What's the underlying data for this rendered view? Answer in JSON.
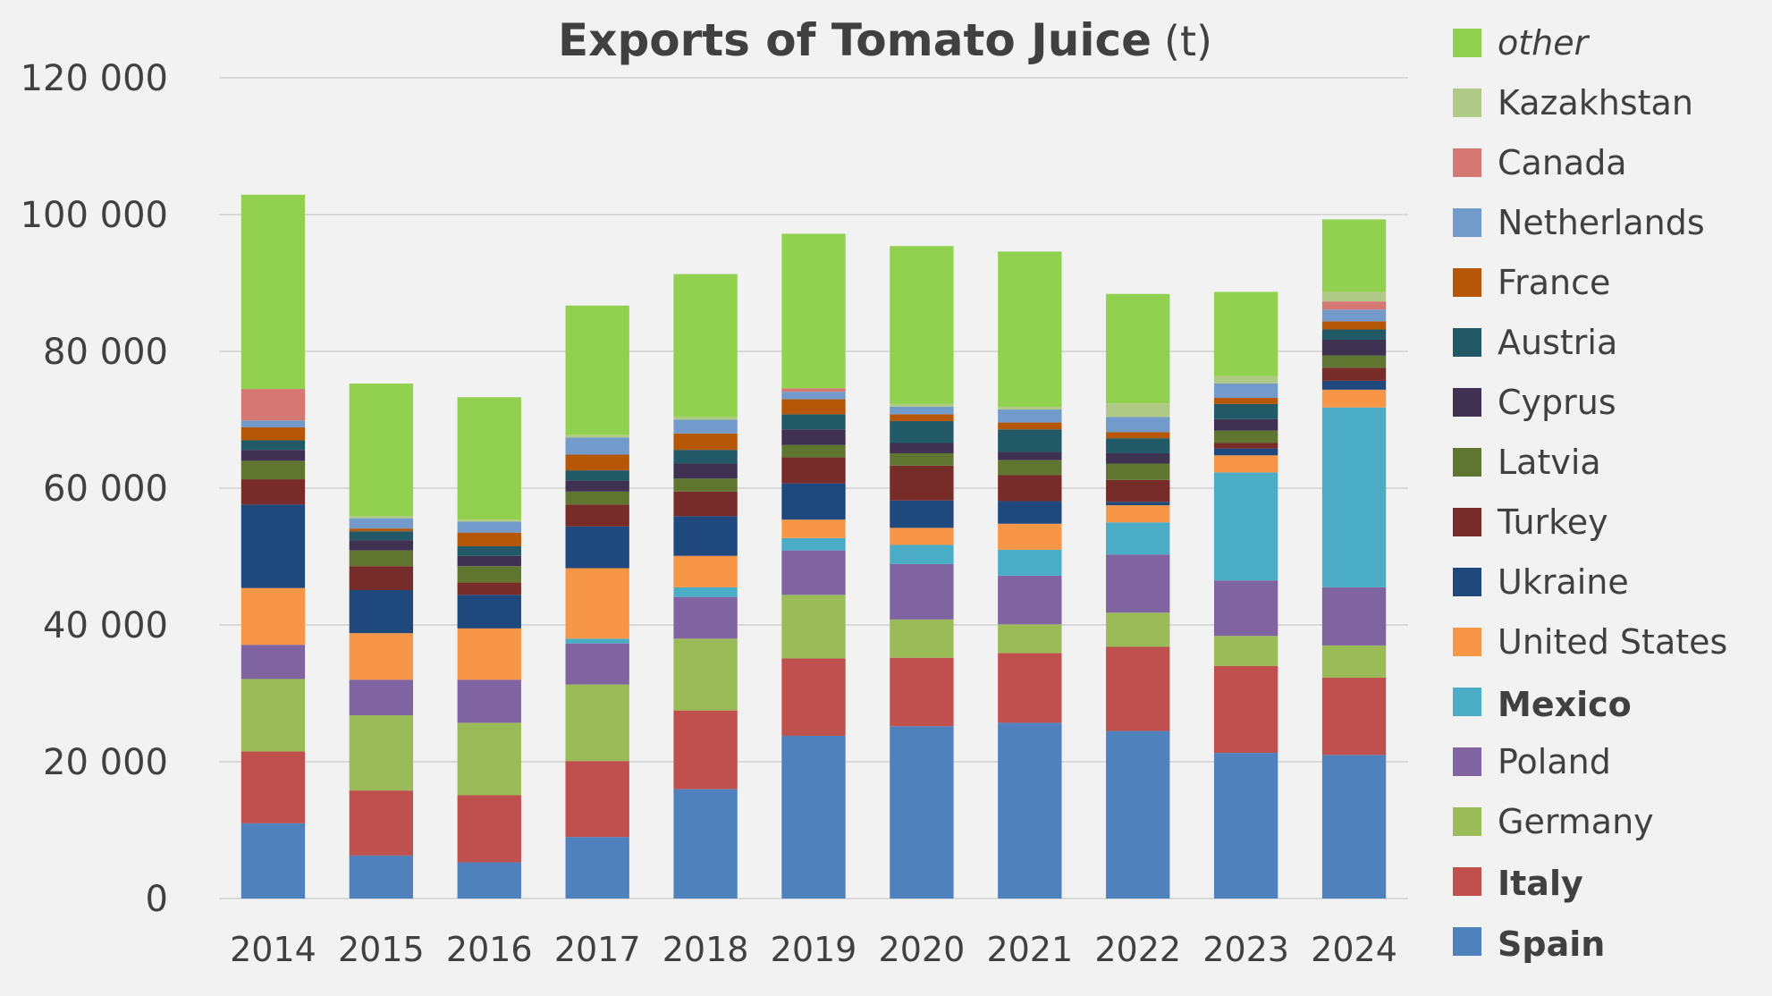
{
  "chart_data": {
    "type": "bar",
    "stacked": true,
    "title": "Exports of Tomato Juice",
    "title_unit": "(t)",
    "xlabel": "",
    "ylabel": "",
    "ylim": [
      0,
      120000
    ],
    "yticks": [
      0,
      20000,
      40000,
      60000,
      80000,
      100000,
      120000
    ],
    "ytick_labels": [
      "0",
      "20 000",
      "40 000",
      "60 000",
      "80 000",
      "100 000",
      "120 000"
    ],
    "grid": true,
    "legend_position": "right",
    "categories": [
      "2014",
      "2015",
      "2016",
      "2017",
      "2018",
      "2019",
      "2020",
      "2021",
      "2022",
      "2023",
      "2024"
    ],
    "series": [
      {
        "name": "Spain",
        "color": "#4f81bd",
        "emphasis": "bold-large",
        "values": [
          11000,
          6300,
          5300,
          9000,
          16000,
          23800,
          25200,
          25700,
          24500,
          21300,
          21000
        ]
      },
      {
        "name": "Italy",
        "color": "#c0504d",
        "emphasis": "bold",
        "values": [
          10500,
          9500,
          9800,
          11100,
          11500,
          11300,
          10000,
          10200,
          12300,
          12700,
          11300
        ]
      },
      {
        "name": "Germany",
        "color": "#9bbb59",
        "emphasis": "",
        "values": [
          10600,
          11000,
          10600,
          11200,
          10500,
          9300,
          5600,
          4200,
          5000,
          4400,
          4700
        ]
      },
      {
        "name": "Poland",
        "color": "#8064a2",
        "emphasis": "",
        "values": [
          5000,
          5200,
          6300,
          6000,
          6100,
          6500,
          8100,
          7100,
          8500,
          8100,
          8500
        ]
      },
      {
        "name": "Mexico",
        "color": "#4bacc6",
        "emphasis": "bold-large",
        "values": [
          0,
          0,
          0,
          700,
          1400,
          1800,
          2800,
          3800,
          4700,
          15800,
          26300
        ]
      },
      {
        "name": "United States",
        "color": "#f79646",
        "emphasis": "",
        "values": [
          8300,
          6800,
          7500,
          10300,
          4600,
          2700,
          2500,
          3800,
          2500,
          2500,
          2600
        ]
      },
      {
        "name": "Ukraine",
        "color": "#1f497d",
        "emphasis": "",
        "values": [
          12200,
          6300,
          4900,
          6100,
          5800,
          5300,
          4000,
          3300,
          500,
          1000,
          1300
        ]
      },
      {
        "name": "Turkey",
        "color": "#772c2a",
        "emphasis": "",
        "values": [
          3700,
          3500,
          1800,
          3200,
          3600,
          3800,
          5100,
          3800,
          3200,
          800,
          1900
        ]
      },
      {
        "name": "Latvia",
        "color": "#5f7530",
        "emphasis": "",
        "values": [
          2700,
          2300,
          2400,
          1900,
          1900,
          1800,
          1800,
          2200,
          2400,
          1800,
          1800
        ]
      },
      {
        "name": "Cyprus",
        "color": "#3f3151",
        "emphasis": "",
        "values": [
          1600,
          1500,
          1500,
          1600,
          2200,
          2300,
          1500,
          1200,
          1500,
          1700,
          2300
        ]
      },
      {
        "name": "Austria",
        "color": "#215967",
        "emphasis": "",
        "values": [
          1400,
          1300,
          1400,
          1500,
          2000,
          2200,
          3200,
          3300,
          2200,
          2200,
          1500
        ]
      },
      {
        "name": "France",
        "color": "#b65708",
        "emphasis": "",
        "values": [
          1900,
          400,
          2000,
          2300,
          2400,
          2200,
          1000,
          1000,
          900,
          900,
          1200
        ]
      },
      {
        "name": "Netherlands",
        "color": "#729aca",
        "emphasis": "",
        "values": [
          1000,
          1500,
          1600,
          2500,
          2000,
          1100,
          1100,
          1900,
          2200,
          2100,
          1700
        ]
      },
      {
        "name": "Canada",
        "color": "#d57773",
        "emphasis": "",
        "values": [
          4600,
          0,
          0,
          0,
          0,
          500,
          0,
          0,
          0,
          0,
          1200
        ]
      },
      {
        "name": "Kazakhstan",
        "color": "#b0c986",
        "emphasis": "",
        "values": [
          0,
          300,
          300,
          400,
          400,
          0,
          400,
          400,
          2000,
          1100,
          1400
        ]
      },
      {
        "name": "other",
        "color": "#92d050",
        "emphasis": "italic",
        "values": [
          28400,
          19400,
          17900,
          18900,
          20900,
          22600,
          23100,
          22700,
          16000,
          12300,
          10600
        ]
      }
    ]
  }
}
